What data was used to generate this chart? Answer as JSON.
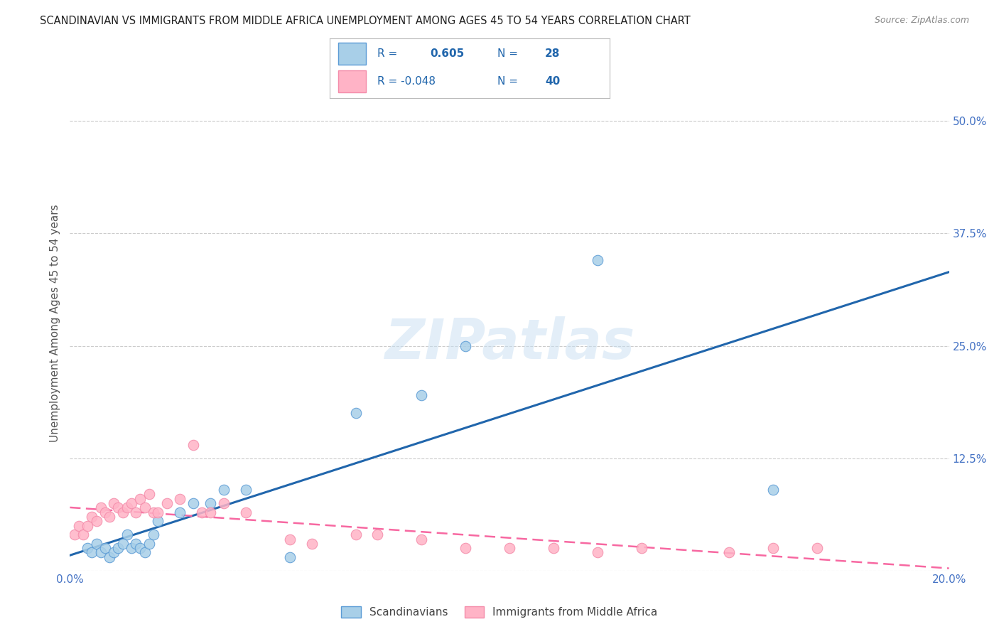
{
  "title": "SCANDINAVIAN VS IMMIGRANTS FROM MIDDLE AFRICA UNEMPLOYMENT AMONG AGES 45 TO 54 YEARS CORRELATION CHART",
  "source": "Source: ZipAtlas.com",
  "ylabel": "Unemployment Among Ages 45 to 54 years",
  "xlim": [
    0.0,
    0.2
  ],
  "ylim": [
    0.0,
    0.55
  ],
  "yticks": [
    0.0,
    0.125,
    0.25,
    0.375,
    0.5
  ],
  "ytick_labels": [
    "",
    "12.5%",
    "25.0%",
    "37.5%",
    "50.0%"
  ],
  "xticks": [
    0.0,
    0.05,
    0.1,
    0.15,
    0.2
  ],
  "xtick_labels": [
    "0.0%",
    "",
    "",
    "",
    "20.0%"
  ],
  "scand_R": 0.605,
  "scand_N": 28,
  "immig_R": -0.048,
  "immig_N": 40,
  "scand_color": "#a8cfe8",
  "immig_color": "#ffb3c6",
  "scand_edge_color": "#5b9bd5",
  "immig_edge_color": "#f48caa",
  "scand_line_color": "#2166ac",
  "immig_line_color": "#f768a1",
  "tick_color": "#4472c4",
  "background_color": "#ffffff",
  "grid_color": "#cccccc",
  "scand_x": [
    0.004,
    0.005,
    0.006,
    0.007,
    0.008,
    0.009,
    0.01,
    0.011,
    0.012,
    0.013,
    0.014,
    0.015,
    0.016,
    0.017,
    0.018,
    0.019,
    0.02,
    0.025,
    0.028,
    0.032,
    0.035,
    0.04,
    0.05,
    0.065,
    0.08,
    0.09,
    0.12,
    0.16
  ],
  "scand_y": [
    0.025,
    0.02,
    0.03,
    0.02,
    0.025,
    0.015,
    0.02,
    0.025,
    0.03,
    0.04,
    0.025,
    0.03,
    0.025,
    0.02,
    0.03,
    0.04,
    0.055,
    0.065,
    0.075,
    0.075,
    0.09,
    0.09,
    0.015,
    0.175,
    0.195,
    0.25,
    0.345,
    0.09
  ],
  "immig_x": [
    0.001,
    0.002,
    0.003,
    0.004,
    0.005,
    0.006,
    0.007,
    0.008,
    0.009,
    0.01,
    0.011,
    0.012,
    0.013,
    0.014,
    0.015,
    0.016,
    0.017,
    0.018,
    0.019,
    0.02,
    0.022,
    0.025,
    0.028,
    0.03,
    0.032,
    0.035,
    0.04,
    0.05,
    0.055,
    0.065,
    0.07,
    0.08,
    0.09,
    0.1,
    0.11,
    0.12,
    0.13,
    0.15,
    0.16,
    0.17
  ],
  "immig_y": [
    0.04,
    0.05,
    0.04,
    0.05,
    0.06,
    0.055,
    0.07,
    0.065,
    0.06,
    0.075,
    0.07,
    0.065,
    0.07,
    0.075,
    0.065,
    0.08,
    0.07,
    0.085,
    0.065,
    0.065,
    0.075,
    0.08,
    0.14,
    0.065,
    0.065,
    0.075,
    0.065,
    0.035,
    0.03,
    0.04,
    0.04,
    0.035,
    0.025,
    0.025,
    0.025,
    0.02,
    0.025,
    0.02,
    0.025,
    0.025
  ],
  "watermark": "ZIPatlas",
  "legend_color": "#2166ac"
}
